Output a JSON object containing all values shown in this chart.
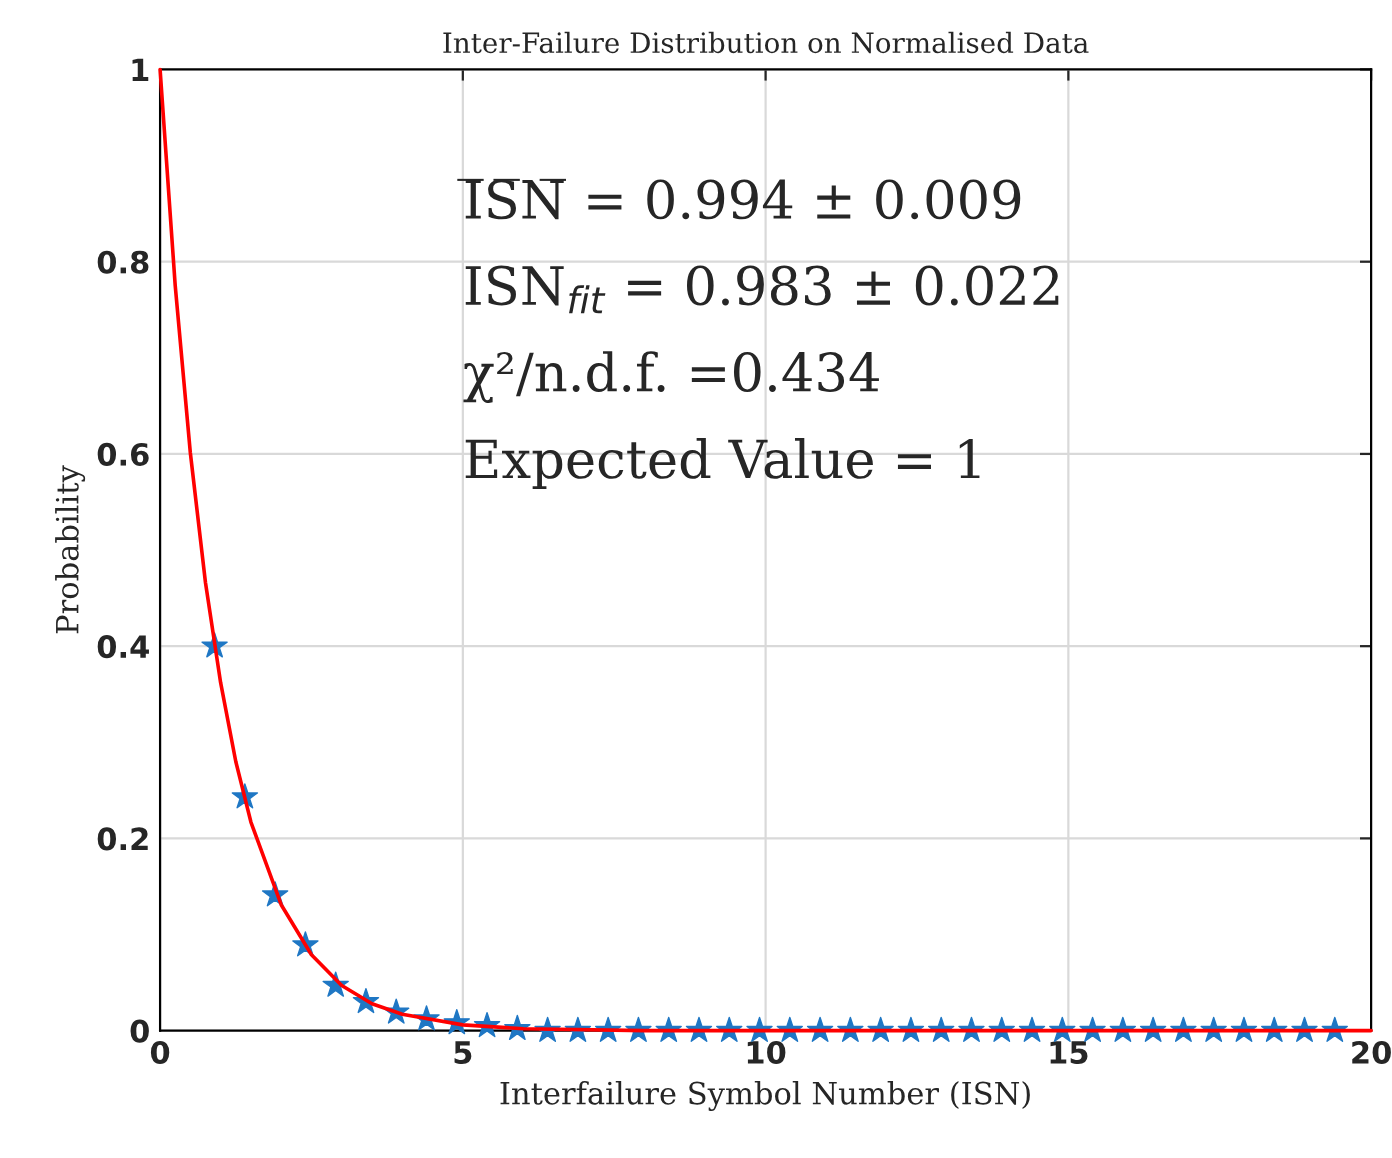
{
  "chart_data": {
    "type": "scatter",
    "title": "Inter-Failure Distribution on Normalised Data",
    "xlabel": "Interfailure Symbol Number (ISN)",
    "ylabel": "Probability",
    "x": [
      0.9,
      1.4,
      1.9,
      2.4,
      2.9,
      3.4,
      3.9,
      4.4,
      4.9,
      5.4,
      5.9,
      6.4,
      6.9,
      7.4,
      7.9,
      8.4,
      8.9,
      9.4,
      9.9,
      10.4,
      10.9,
      11.4,
      11.9,
      12.4,
      12.9,
      13.4,
      13.9,
      14.4,
      14.9,
      15.4,
      15.9,
      16.4,
      16.9,
      17.4,
      17.9,
      18.4,
      18.9,
      19.4
    ],
    "series": [
      {
        "color": "#1f77c4",
        "marker": "star",
        "values": [
          0.4,
          0.243,
          0.141,
          0.089,
          0.047,
          0.03,
          0.019,
          0.012,
          0.008,
          0.005,
          0.002,
          0,
          0,
          0,
          0,
          0,
          0,
          0,
          0,
          0,
          0,
          0,
          0,
          0,
          0,
          0,
          0,
          0,
          0,
          0,
          0,
          0,
          0,
          0,
          0,
          0,
          0,
          0
        ]
      },
      {
        "type": "line",
        "color": "#ff0000",
        "marker": "none",
        "line_style": "solid",
        "x": [
          0,
          0.25,
          0.5,
          0.75,
          1,
          1.25,
          1.5,
          2,
          2.5,
          3,
          3.5,
          4,
          5,
          6,
          8,
          10,
          15,
          20
        ],
        "values": [
          1,
          0.775,
          0.601,
          0.466,
          0.362,
          0.28,
          0.217,
          0.131,
          0.079,
          0.047,
          0.028,
          0.017,
          0.006,
          0.002,
          0,
          0,
          0,
          0
        ]
      }
    ],
    "annotations": [
      "I̅S̅N̅ = 0.994 ± 0.009",
      "ISN$_{fit}$ = 0.983 ± 0.022",
      "χ²/n.d.f. =0.434",
      "Expected Value = 1"
    ],
    "xlim": [
      0,
      20
    ],
    "xticks": [
      0,
      5,
      10,
      15,
      20
    ],
    "ylim": [
      0,
      1
    ],
    "yticks": [
      0,
      0.2,
      0.4,
      0.6,
      0.8,
      1
    ],
    "grid": true
  }
}
